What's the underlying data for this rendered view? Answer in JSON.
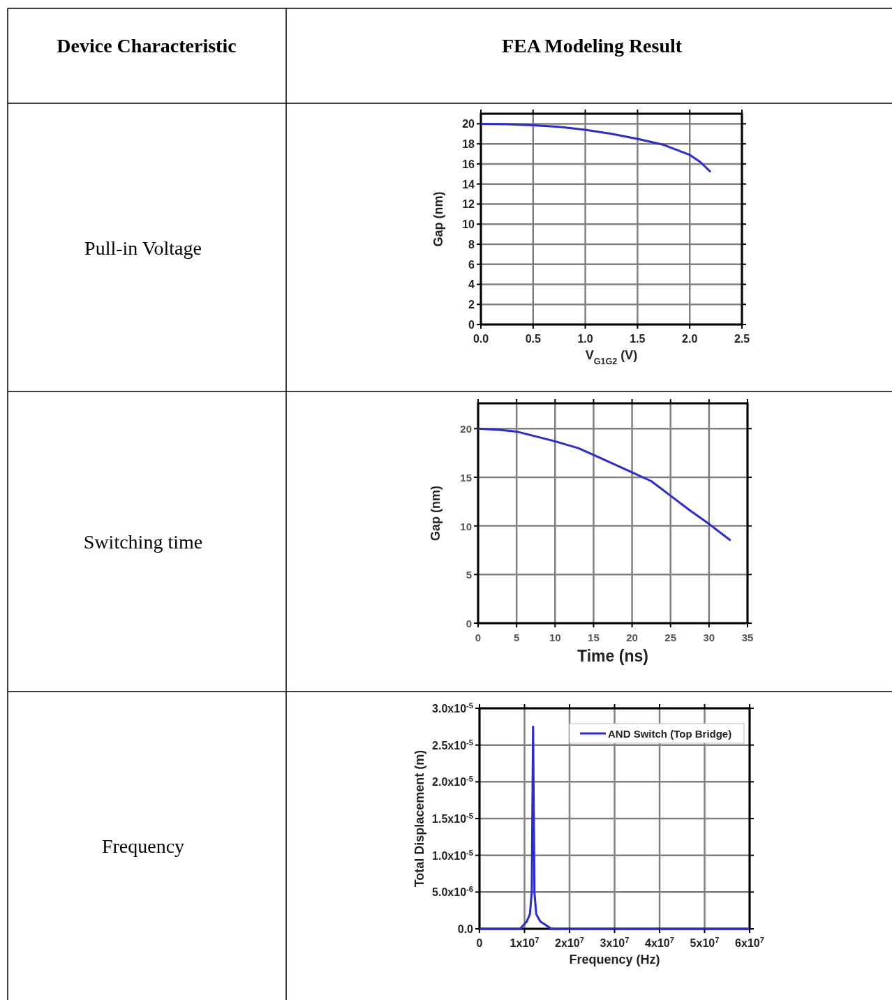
{
  "chart_data": [
    {
      "type": "line",
      "annotations": [
        "Device Characteristic",
        "FEA Modeling Result",
        "Pull-in Voltage"
      ],
      "xlabel": "V$_{G1G2}$ (V)",
      "ylabel": "Gap (nm)",
      "xlim": [
        0,
        2.5
      ],
      "ylim": [
        0,
        21
      ],
      "xticks": [
        {
          "value": 0,
          "label": "0.0"
        },
        {
          "value": 0.5,
          "label": "0.5"
        },
        {
          "value": 1,
          "label": "1.0"
        },
        {
          "value": 1.5,
          "label": "1.5"
        },
        {
          "value": 2,
          "label": "2.0"
        },
        {
          "value": 2.5,
          "label": "2.5"
        }
      ],
      "yticks": [
        0,
        2,
        4,
        6,
        8,
        10,
        12,
        14,
        16,
        18,
        20
      ],
      "grid": true,
      "series": [
        {
          "color": "#2a2ad6",
          "x": [
            0,
            0.25,
            0.5,
            0.75,
            1.0,
            1.25,
            1.5,
            1.75,
            2.0,
            2.1,
            2.2
          ],
          "values": [
            20,
            19.95,
            19.85,
            19.7,
            19.4,
            19.0,
            18.5,
            17.9,
            16.9,
            16.2,
            15.2
          ]
        }
      ]
    },
    {
      "type": "line",
      "annotations": [
        "Switching time"
      ],
      "xlabel": "Time (ns)",
      "ylabel": "Gap (nm)",
      "xlim": [
        0,
        35
      ],
      "ylim": [
        0,
        22.6
      ],
      "xticks": [
        0,
        5,
        10,
        15,
        20,
        25,
        30,
        35
      ],
      "yticks": [
        0,
        5,
        10,
        15,
        20
      ],
      "grid": true,
      "series": [
        {
          "color": "#2a2ad6",
          "x": [
            0,
            2.5,
            5,
            7.5,
            10,
            13,
            15,
            17.5,
            20,
            22.5,
            25,
            27.5,
            30,
            32.8
          ],
          "values": [
            20,
            19.9,
            19.7,
            19.2,
            18.7,
            18.0,
            17.3,
            16.4,
            15.5,
            14.6,
            13.1,
            11.6,
            10.2,
            8.5
          ]
        }
      ]
    },
    {
      "type": "line",
      "annotations": [
        "Frequency"
      ],
      "xlabel": "Frequency (Hz)",
      "ylabel": "Total Displacement (m)",
      "xlim": [
        0,
        60000000
      ],
      "ylim": [
        0,
        3e-05
      ],
      "xticks": [
        0,
        {
          "value": 10000000,
          "label": "1x10$^{7}$"
        },
        {
          "value": 20000000,
          "label": "2x10$^{7}$"
        },
        {
          "value": 30000000,
          "label": "3x10$^{7}$"
        },
        {
          "value": 40000000,
          "label": "4x10$^{7}$"
        },
        {
          "value": 50000000,
          "label": "5x10$^{7}$"
        },
        {
          "value": 60000000,
          "label": "6x10$^{7}$"
        }
      ],
      "yticks": [
        {
          "value": 0,
          "label": "0.0"
        },
        {
          "value": 5e-06,
          "label": "5.0x10$^{-6}$"
        },
        {
          "value": 1e-05,
          "label": "1.0x10$^{-5}$"
        },
        {
          "value": 1.5e-05,
          "label": "1.5x10$^{-5}$"
        },
        {
          "value": 2e-05,
          "label": "2.0x10$^{-5}$"
        },
        {
          "value": 2.5e-05,
          "label": "2.5x10$^{-5}$"
        },
        {
          "value": 3e-05,
          "label": "3.0x10$^{-5}$"
        }
      ],
      "grid": true,
      "legend": "top right",
      "series": [
        {
          "name": "AND Switch (Top Bridge)",
          "color": "#2a2ad6",
          "x": [
            0,
            5000000,
            9000000,
            10500000,
            11200000,
            11600000,
            11900000,
            12200000,
            12600000,
            13500000,
            16000000,
            20000000,
            30000000,
            60000000
          ],
          "values": [
            0,
            0,
            0,
            1e-06,
            2e-06,
            5e-06,
            2.75e-05,
            5e-06,
            2e-06,
            1e-06,
            0,
            0,
            0,
            0
          ]
        }
      ]
    }
  ]
}
